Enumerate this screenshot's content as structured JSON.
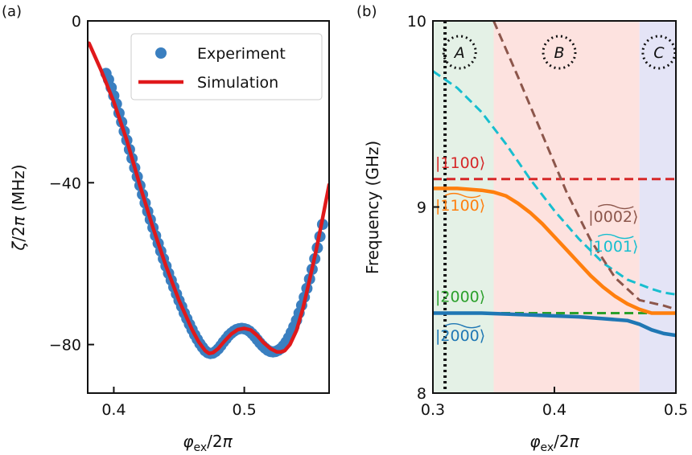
{
  "panels": {
    "a": {
      "label": "(a)"
    },
    "b": {
      "label": "(b)"
    }
  },
  "chart_data": [
    {
      "type": "line",
      "panel": "(a)",
      "xlabel": "φex/2π",
      "ylabel": "ζ/2π (MHz)",
      "xlim": [
        0.38,
        0.565
      ],
      "ylim": [
        -92,
        0
      ],
      "xticks": [
        0.4,
        0.5
      ],
      "xtick_labels": [
        "0.4",
        "0.5"
      ],
      "yticks": [
        0,
        -40,
        -80
      ],
      "ytick_labels": [
        "0",
        "−40",
        "−80"
      ],
      "legend": {
        "placement": "top-right",
        "entries": [
          "Experiment",
          "Simulation"
        ]
      },
      "colors": {
        "experiment": "#3a7fc0",
        "simulation": "#e0191b"
      },
      "series": [
        {
          "name": "Experiment",
          "style": "markers",
          "x": [
            0.394,
            0.396,
            0.398,
            0.4,
            0.402,
            0.404,
            0.406,
            0.408,
            0.41,
            0.412,
            0.414,
            0.416,
            0.418,
            0.42,
            0.422,
            0.424,
            0.426,
            0.428,
            0.43,
            0.432,
            0.434,
            0.436,
            0.438,
            0.44,
            0.442,
            0.444,
            0.446,
            0.448,
            0.45,
            0.452,
            0.454,
            0.456,
            0.458,
            0.46,
            0.462,
            0.464,
            0.466,
            0.468,
            0.47,
            0.472,
            0.474,
            0.476,
            0.478,
            0.48,
            0.482,
            0.484,
            0.486,
            0.488,
            0.49,
            0.492,
            0.494,
            0.496,
            0.498,
            0.5,
            0.502,
            0.504,
            0.506,
            0.508,
            0.51,
            0.512,
            0.514,
            0.516,
            0.518,
            0.52,
            0.522,
            0.524,
            0.526,
            0.528,
            0.53,
            0.532,
            0.534,
            0.536,
            0.538,
            0.54,
            0.542,
            0.544,
            0.546,
            0.548,
            0.55,
            0.552,
            0.554,
            0.556,
            0.558,
            0.56
          ],
          "y": [
            -13.0,
            -14.5,
            -16.5,
            -18.5,
            -20.5,
            -22.8,
            -25.0,
            -27.3,
            -29.5,
            -31.8,
            -34.0,
            -36.3,
            -38.5,
            -40.7,
            -42.9,
            -45.0,
            -47.1,
            -49.1,
            -51.1,
            -53.1,
            -55.0,
            -56.9,
            -58.8,
            -60.6,
            -62.4,
            -64.1,
            -65.8,
            -67.5,
            -69.1,
            -70.6,
            -72.2,
            -73.6,
            -75.0,
            -76.3,
            -77.6,
            -78.7,
            -79.8,
            -80.7,
            -81.5,
            -82.0,
            -82.2,
            -82.1,
            -81.7,
            -81.1,
            -80.3,
            -79.4,
            -78.6,
            -77.8,
            -77.2,
            -76.7,
            -76.3,
            -76.1,
            -76.0,
            -76.1,
            -76.3,
            -76.7,
            -77.3,
            -78.0,
            -78.8,
            -79.6,
            -80.3,
            -80.9,
            -81.4,
            -81.7,
            -81.8,
            -81.7,
            -81.4,
            -81.0,
            -80.3,
            -79.4,
            -78.3,
            -77.0,
            -75.6,
            -74.0,
            -72.2,
            -70.3,
            -68.3,
            -66.1,
            -63.8,
            -61.4,
            -58.8,
            -56.1,
            -53.3,
            -50.3
          ]
        },
        {
          "name": "Simulation",
          "style": "solid",
          "x": [
            0.381,
            0.39,
            0.4,
            0.41,
            0.42,
            0.43,
            0.44,
            0.45,
            0.46,
            0.465,
            0.47,
            0.473,
            0.476,
            0.48,
            0.485,
            0.49,
            0.495,
            0.5,
            0.505,
            0.51,
            0.515,
            0.52,
            0.525,
            0.528,
            0.531,
            0.535,
            0.54,
            0.545,
            0.55,
            0.555,
            0.56,
            0.565
          ],
          "y": [
            -5.5,
            -12.0,
            -20.0,
            -29.5,
            -40.7,
            -51.1,
            -60.6,
            -69.1,
            -76.3,
            -79.3,
            -81.5,
            -82.2,
            -82.0,
            -81.0,
            -79.1,
            -77.4,
            -76.3,
            -76.0,
            -76.4,
            -77.8,
            -79.6,
            -81.0,
            -81.8,
            -81.8,
            -81.5,
            -80.0,
            -76.5,
            -71.0,
            -64.0,
            -56.8,
            -48.8,
            -40.5
          ]
        }
      ]
    },
    {
      "type": "line",
      "panel": "(b)",
      "xlabel": "φex/2π",
      "ylabel": "Frequency (GHz)",
      "xlim": [
        0.3,
        0.5
      ],
      "ylim": [
        8,
        10
      ],
      "xticks": [
        0.3,
        0.4,
        0.5
      ],
      "xtick_labels": [
        "0.3",
        "0.4",
        "0.5"
      ],
      "yticks": [
        8,
        9,
        10
      ],
      "ytick_labels": [
        "8",
        "9",
        "10"
      ],
      "vline_x": 0.31,
      "regions": [
        {
          "label": "A",
          "x0": 0.3,
          "x1": 0.35,
          "color": "#e4f1e6"
        },
        {
          "label": "B",
          "x0": 0.35,
          "x1": 0.47,
          "color": "#fde2df"
        },
        {
          "label": "C",
          "x0": 0.47,
          "x1": 0.5,
          "color": "#e4e4f6"
        }
      ],
      "series": [
        {
          "name": "|1100⟩",
          "style": "dashed",
          "color": "#d62728",
          "x": [
            0.3,
            0.5
          ],
          "y": [
            9.15,
            9.15
          ]
        },
        {
          "name": "|2000⟩",
          "style": "dashed",
          "color": "#2ca02c",
          "x": [
            0.3,
            0.5
          ],
          "y": [
            8.43,
            8.43
          ]
        },
        {
          "name": "|1001⟩ (dressed)",
          "style": "dashed",
          "color": "#17becf",
          "x": [
            0.3,
            0.32,
            0.34,
            0.36,
            0.38,
            0.4,
            0.42,
            0.44,
            0.46,
            0.48,
            0.49,
            0.5
          ],
          "y": [
            9.73,
            9.64,
            9.51,
            9.34,
            9.15,
            8.98,
            8.83,
            8.7,
            8.61,
            8.56,
            8.54,
            8.53
          ]
        },
        {
          "name": "|0002⟩ (dressed)",
          "style": "dashed",
          "color": "#8c564b",
          "x": [
            0.35,
            0.37,
            0.39,
            0.41,
            0.43,
            0.45,
            0.47,
            0.49,
            0.5
          ],
          "y": [
            10.0,
            9.7,
            9.39,
            9.08,
            8.82,
            8.62,
            8.5,
            8.47,
            8.45
          ]
        },
        {
          "name": "|1100⟩ (dressed)",
          "style": "solid",
          "color": "#ff7f0e",
          "x": [
            0.3,
            0.32,
            0.34,
            0.35,
            0.36,
            0.37,
            0.38,
            0.39,
            0.4,
            0.41,
            0.42,
            0.43,
            0.44,
            0.45,
            0.46,
            0.47,
            0.48,
            0.49,
            0.5
          ],
          "y": [
            9.1,
            9.1,
            9.09,
            9.08,
            9.06,
            9.02,
            8.97,
            8.91,
            8.84,
            8.77,
            8.7,
            8.63,
            8.57,
            8.52,
            8.48,
            8.45,
            8.43,
            8.43,
            8.43
          ]
        },
        {
          "name": "|2000⟩ (dressed)",
          "style": "solid",
          "color": "#1f77b4",
          "x": [
            0.3,
            0.34,
            0.38,
            0.42,
            0.44,
            0.46,
            0.47,
            0.48,
            0.49,
            0.5
          ],
          "y": [
            8.43,
            8.43,
            8.42,
            8.41,
            8.4,
            8.39,
            8.37,
            8.34,
            8.32,
            8.31
          ]
        }
      ],
      "state_labels": [
        {
          "text": "|1100⟩",
          "overbar": false,
          "color": "#d62728",
          "x": 0.302,
          "y": 9.21
        },
        {
          "text": "|1100⟩",
          "overbar": true,
          "color": "#ff7f0e",
          "x": 0.302,
          "y": 8.98
        },
        {
          "text": "|2000⟩",
          "overbar": false,
          "color": "#2ca02c",
          "x": 0.302,
          "y": 8.49
        },
        {
          "text": "|2000⟩",
          "overbar": true,
          "color": "#1f77b4",
          "x": 0.302,
          "y": 8.28
        },
        {
          "text": "|0002⟩",
          "overbar": true,
          "color": "#8c564b",
          "x": 0.428,
          "y": 8.92
        },
        {
          "text": "|1001⟩",
          "overbar": true,
          "color": "#17becf",
          "x": 0.428,
          "y": 8.76
        }
      ]
    }
  ]
}
